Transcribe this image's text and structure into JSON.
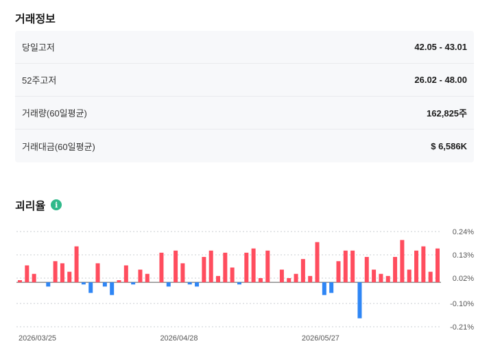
{
  "trading_info": {
    "title": "거래정보",
    "rows": [
      {
        "label": "당일고저",
        "value": "42.05 - 43.01"
      },
      {
        "label": "52주고저",
        "value": "26.02 - 48.00"
      },
      {
        "label": "거래량(60일평균)",
        "value": "162,825주"
      },
      {
        "label": "거래대금(60일평균)",
        "value": "$ 6,586K"
      }
    ]
  },
  "disparity": {
    "title": "괴리율",
    "info_icon": "i",
    "colors": {
      "positive": "#ff4d5e",
      "negative": "#2f86f5"
    }
  },
  "chart_data": {
    "type": "bar",
    "ylim": [
      -0.21,
      0.24
    ],
    "yticks": [
      "0.24%",
      "0.13%",
      "0.02%",
      "-0.10%",
      "-0.21%"
    ],
    "ytick_values": [
      0.24,
      0.13,
      0.02,
      -0.1,
      -0.21
    ],
    "x_labels": [
      "2026/03/25",
      "2026/04/28",
      "2026/05/27"
    ],
    "x_label_indices": [
      0,
      20,
      40
    ],
    "values": [
      0.01,
      0.08,
      0.04,
      0.0,
      -0.02,
      0.1,
      0.09,
      0.05,
      0.17,
      -0.01,
      -0.05,
      0.09,
      -0.02,
      -0.06,
      0.01,
      0.08,
      -0.01,
      0.06,
      0.04,
      0.0,
      0.14,
      -0.02,
      0.15,
      0.09,
      -0.01,
      -0.02,
      0.12,
      0.15,
      0.03,
      0.14,
      0.07,
      -0.01,
      0.14,
      0.16,
      0.02,
      0.15,
      0.0,
      0.06,
      0.02,
      0.04,
      0.11,
      0.03,
      0.19,
      -0.06,
      -0.05,
      0.1,
      0.15,
      0.15,
      -0.17,
      0.12,
      0.06,
      0.04,
      0.03,
      0.12,
      0.2,
      0.06,
      0.15,
      0.17,
      0.05,
      0.16
    ]
  }
}
